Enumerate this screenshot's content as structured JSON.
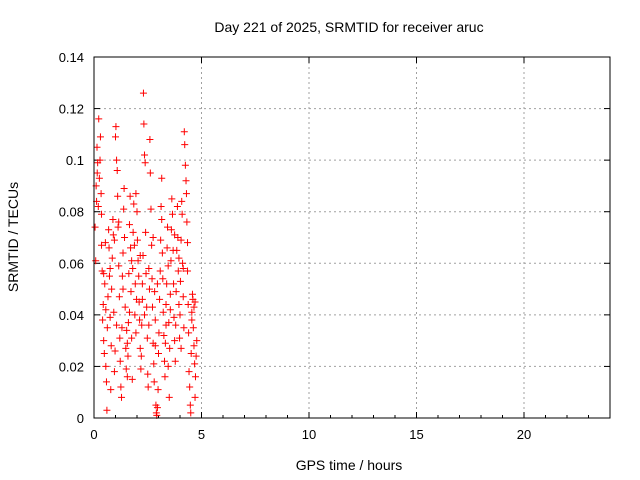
{
  "chart_data": {
    "type": "scatter",
    "title": "Day 221 of 2025, SRMTID for receiver aruc",
    "xlabel": "GPS time / hours",
    "ylabel": "SRMTID / TECUs",
    "xlim": [
      0,
      24
    ],
    "ylim": [
      0,
      0.14
    ],
    "xticks": [
      "0",
      "5",
      "10",
      "15",
      "20"
    ],
    "yticks": [
      "0",
      "0.02",
      "0.04",
      "0.06",
      "0.08",
      "0.1",
      "0.12",
      "0.14"
    ],
    "grid": true,
    "marker": "+",
    "color": "#ff0000",
    "series": [
      {
        "values": [
          [
            0.05,
            0.074
          ],
          [
            0.08,
            0.061
          ],
          [
            0.1,
            0.09
          ],
          [
            0.12,
            0.084
          ],
          [
            0.14,
            0.105
          ],
          [
            0.17,
            0.099
          ],
          [
            0.2,
            0.082
          ],
          [
            0.22,
            0.116
          ],
          [
            0.25,
            0.093
          ],
          [
            0.28,
            0.1
          ],
          [
            0.3,
            0.109
          ],
          [
            0.33,
            0.087
          ],
          [
            0.35,
            0.079
          ],
          [
            0.38,
            0.057
          ],
          [
            0.4,
            0.038
          ],
          [
            0.43,
            0.044
          ],
          [
            0.45,
            0.03
          ],
          [
            0.48,
            0.025
          ],
          [
            0.5,
            0.052
          ],
          [
            0.53,
            0.068
          ],
          [
            0.55,
            0.02
          ],
          [
            0.58,
            0.014
          ],
          [
            0.6,
            0.003
          ],
          [
            0.62,
            0.035
          ],
          [
            0.65,
            0.047
          ],
          [
            0.68,
            0.073
          ],
          [
            0.7,
            0.066
          ],
          [
            0.72,
            0.055
          ],
          [
            0.75,
            0.039
          ],
          [
            0.78,
            0.011
          ],
          [
            0.8,
            0.028
          ],
          [
            0.82,
            0.05
          ],
          [
            0.85,
            0.062
          ],
          [
            0.88,
            0.077
          ],
          [
            0.9,
            0.071
          ],
          [
            0.92,
            0.041
          ],
          [
            0.95,
            0.018
          ],
          [
            0.98,
            0.026
          ],
          [
            1.0,
            0.109
          ],
          [
            1.02,
            0.113
          ],
          [
            1.05,
            0.1
          ],
          [
            1.08,
            0.096
          ],
          [
            1.1,
            0.086
          ],
          [
            1.12,
            0.074
          ],
          [
            1.15,
            0.059
          ],
          [
            1.18,
            0.047
          ],
          [
            1.2,
            0.031
          ],
          [
            1.22,
            0.022
          ],
          [
            1.25,
            0.012
          ],
          [
            1.28,
            0.008
          ],
          [
            1.3,
            0.035
          ],
          [
            1.32,
            0.055
          ],
          [
            1.35,
            0.064
          ],
          [
            1.38,
            0.081
          ],
          [
            1.4,
            0.089
          ],
          [
            1.42,
            0.07
          ],
          [
            1.45,
            0.043
          ],
          [
            1.48,
            0.027
          ],
          [
            1.5,
            0.019
          ],
          [
            1.52,
            0.034
          ],
          [
            1.55,
            0.029
          ],
          [
            1.58,
            0.024
          ],
          [
            1.6,
            0.037
          ],
          [
            1.62,
            0.056
          ],
          [
            1.65,
            0.075
          ],
          [
            1.68,
            0.086
          ],
          [
            1.7,
            0.066
          ],
          [
            1.72,
            0.049
          ],
          [
            1.75,
            0.031
          ],
          [
            1.78,
            0.015
          ],
          [
            1.8,
            0.058
          ],
          [
            1.82,
            0.072
          ],
          [
            1.85,
            0.083
          ],
          [
            1.88,
            0.067
          ],
          [
            1.9,
            0.04
          ],
          [
            1.92,
            0.052
          ],
          [
            1.95,
            0.033
          ],
          [
            1.98,
            0.046
          ],
          [
            2.0,
            0.08
          ],
          [
            2.02,
            0.069
          ],
          [
            2.05,
            0.061
          ],
          [
            2.08,
            0.055
          ],
          [
            2.1,
            0.045
          ],
          [
            2.12,
            0.038
          ],
          [
            2.15,
            0.027
          ],
          [
            2.18,
            0.019
          ],
          [
            2.2,
            0.024
          ],
          [
            2.22,
            0.036
          ],
          [
            2.25,
            0.046
          ],
          [
            2.28,
            0.063
          ],
          [
            2.3,
            0.126
          ],
          [
            2.32,
            0.114
          ],
          [
            2.35,
            0.102
          ],
          [
            2.38,
            0.099
          ],
          [
            2.4,
            0.072
          ],
          [
            2.42,
            0.056
          ],
          [
            2.45,
            0.043
          ],
          [
            2.48,
            0.031
          ],
          [
            2.5,
            0.017
          ],
          [
            2.52,
            0.012
          ],
          [
            2.55,
            0.036
          ],
          [
            2.58,
            0.05
          ],
          [
            2.6,
            0.108
          ],
          [
            2.62,
            0.095
          ],
          [
            2.65,
            0.081
          ],
          [
            2.68,
            0.067
          ],
          [
            2.7,
            0.054
          ],
          [
            2.72,
            0.043
          ],
          [
            2.75,
            0.029
          ],
          [
            2.78,
            0.021
          ],
          [
            2.8,
            0.014
          ],
          [
            2.82,
            0.049
          ],
          [
            2.85,
            0.038
          ],
          [
            2.88,
            0.005
          ],
          [
            2.9,
            0.002
          ],
          [
            2.92,
            0.001
          ],
          [
            2.95,
            0.004
          ],
          [
            2.98,
            0.011
          ],
          [
            3.0,
            0.025
          ],
          [
            3.02,
            0.033
          ],
          [
            3.05,
            0.046
          ],
          [
            3.08,
            0.057
          ],
          [
            3.1,
            0.069
          ],
          [
            3.12,
            0.082
          ],
          [
            3.15,
            0.077
          ],
          [
            3.18,
            0.064
          ],
          [
            3.2,
            0.054
          ],
          [
            3.22,
            0.041
          ],
          [
            3.25,
            0.032
          ],
          [
            3.28,
            0.022
          ],
          [
            3.3,
            0.016
          ],
          [
            3.32,
            0.029
          ],
          [
            3.35,
            0.044
          ],
          [
            3.38,
            0.052
          ],
          [
            3.4,
            0.066
          ],
          [
            3.42,
            0.074
          ],
          [
            3.45,
            0.059
          ],
          [
            3.48,
            0.037
          ],
          [
            3.5,
            0.008
          ],
          [
            3.52,
            0.027
          ],
          [
            3.55,
            0.048
          ],
          [
            3.58,
            0.061
          ],
          [
            3.6,
            0.073
          ],
          [
            3.62,
            0.085
          ],
          [
            3.65,
            0.079
          ],
          [
            3.68,
            0.065
          ],
          [
            3.7,
            0.052
          ],
          [
            3.72,
            0.039
          ],
          [
            3.75,
            0.03
          ],
          [
            3.78,
            0.022
          ],
          [
            3.8,
            0.036
          ],
          [
            3.82,
            0.049
          ],
          [
            3.85,
            0.065
          ],
          [
            3.88,
            0.082
          ],
          [
            3.9,
            0.07
          ],
          [
            3.92,
            0.057
          ],
          [
            3.95,
            0.044
          ],
          [
            3.98,
            0.031
          ],
          [
            4.0,
            0.04
          ],
          [
            4.02,
            0.053
          ],
          [
            4.05,
            0.069
          ],
          [
            4.08,
            0.084
          ],
          [
            4.1,
            0.079
          ],
          [
            4.12,
            0.06
          ],
          [
            4.15,
            0.047
          ],
          [
            4.18,
            0.035
          ],
          [
            4.2,
            0.111
          ],
          [
            4.22,
            0.106
          ],
          [
            4.25,
            0.098
          ],
          [
            4.28,
            0.092
          ],
          [
            4.3,
            0.087
          ],
          [
            4.32,
            0.076
          ],
          [
            4.35,
            0.057
          ],
          [
            4.38,
            0.044
          ],
          [
            4.4,
            0.033
          ],
          [
            4.42,
            0.018
          ],
          [
            4.45,
            0.012
          ],
          [
            4.48,
            0.005
          ],
          [
            4.5,
            0.002
          ],
          [
            4.52,
            0.025
          ],
          [
            4.55,
            0.041
          ],
          [
            4.58,
            0.048
          ],
          [
            4.6,
            0.046
          ],
          [
            4.62,
            0.035
          ],
          [
            4.65,
            0.028
          ],
          [
            4.68,
            0.021
          ],
          [
            4.7,
            0.008
          ],
          [
            4.72,
            0.016
          ],
          [
            4.75,
            0.024
          ],
          [
            4.78,
            0.03
          ],
          [
            0.15,
            0.095
          ],
          [
            0.35,
            0.067
          ],
          [
            0.55,
            0.042
          ],
          [
            0.75,
            0.058
          ],
          [
            0.95,
            0.069
          ],
          [
            1.15,
            0.076
          ],
          [
            1.35,
            0.05
          ],
          [
            1.55,
            0.016
          ],
          [
            1.75,
            0.061
          ],
          [
            1.95,
            0.087
          ],
          [
            2.15,
            0.063
          ],
          [
            2.35,
            0.04
          ],
          [
            2.55,
            0.058
          ],
          [
            2.75,
            0.07
          ],
          [
            2.95,
            0.052
          ],
          [
            3.15,
            0.093
          ],
          [
            3.35,
            0.036
          ],
          [
            3.55,
            0.042
          ],
          [
            3.75,
            0.071
          ],
          [
            3.95,
            0.062
          ],
          [
            4.15,
            0.058
          ],
          [
            4.35,
            0.068
          ],
          [
            4.55,
            0.038
          ],
          [
            4.7,
            0.045
          ],
          [
            0.45,
            0.056
          ],
          [
            1.05,
            0.036
          ],
          [
            1.65,
            0.041
          ],
          [
            2.25,
            0.052
          ],
          [
            2.85,
            0.028
          ],
          [
            3.45,
            0.02
          ],
          [
            4.05,
            0.027
          ],
          [
            4.65,
            0.043
          ]
        ]
      }
    ]
  }
}
